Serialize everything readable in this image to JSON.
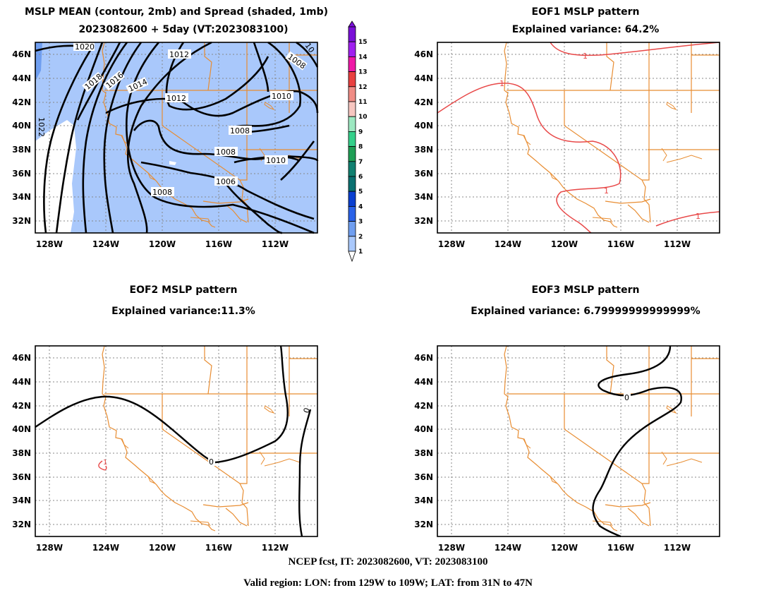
{
  "titles": {
    "panel1_line1": "MSLP MEAN (contour, 2mb) and Spread (shaded, 1mb)",
    "panel1_line2": "2023082600 + 5day (VT:2023083100)",
    "panel2_line1": "EOF1 MSLP pattern",
    "panel2_line2": "Explained variance: 64.2%",
    "panel3_line1": "EOF2 MSLP pattern",
    "panel3_line2": "Explained variance:11.3%",
    "panel4_line1": "EOF3 MSLP pattern",
    "panel4_line2": "Explained variance: 6.79999999999999%"
  },
  "footer": {
    "line1": "NCEP fcst, IT: 2023082600, VT: 2023083100",
    "line2": "Valid region: LON: from 129W to 109W; LAT: from 31N to 47N"
  },
  "colorbar": {
    "levels": [
      "1",
      "2",
      "3",
      "4",
      "5",
      "6",
      "7",
      "8",
      "9",
      "10",
      "11",
      "12",
      "13",
      "14",
      "15"
    ],
    "colors": [
      "#ffffff",
      "#a9c8fb",
      "#6f9ef0",
      "#2a62e8",
      "#0a3fd0",
      "#0a7070",
      "#108070",
      "#1f9e55",
      "#34d08a",
      "#9de8c1",
      "#f7c6c0",
      "#f08c85",
      "#e94040",
      "#ef18a7",
      "#a020f0",
      "#7a10d8"
    ]
  },
  "chart_data": [
    {
      "type": "contour",
      "title": "MSLP MEAN (contour, 2mb) and Spread (shaded, 1mb)",
      "subtitle": "2023082600 + 5day (VT:2023083100)",
      "contour_interval_mb": 2,
      "shading_interval_mb": 1,
      "contour_labels": [
        "1020",
        "1018",
        "1016",
        "1014",
        "1012",
        "1012",
        "1010",
        "1010",
        "1008",
        "1008",
        "1008",
        "1008",
        "1006",
        "1022"
      ],
      "x_ticks": [
        "128W",
        "124W",
        "120W",
        "116W",
        "112W"
      ],
      "y_ticks": [
        "46N",
        "44N",
        "42N",
        "40N",
        "38N",
        "36N",
        "34N",
        "32N"
      ],
      "xlim": [
        -129,
        -109
      ],
      "ylim": [
        31,
        47
      ],
      "grid": true
    },
    {
      "type": "contour",
      "title": "EOF1 MSLP pattern",
      "subtitle": "Explained variance: 64.2%",
      "explained_variance_pct": 64.2,
      "contour_labels": [
        "1",
        "1",
        "1",
        "1"
      ],
      "x_ticks": [
        "128W",
        "124W",
        "120W",
        "116W",
        "112W"
      ],
      "y_ticks": [
        "46N",
        "44N",
        "42N",
        "40N",
        "38N",
        "36N",
        "34N",
        "32N"
      ],
      "xlim": [
        -129,
        -109
      ],
      "ylim": [
        31,
        47
      ],
      "grid": true
    },
    {
      "type": "contour",
      "title": "EOF2 MSLP pattern",
      "subtitle": "Explained variance:11.3%",
      "explained_variance_pct": 11.3,
      "contour_labels": [
        "0",
        "0",
        "1"
      ],
      "x_ticks": [
        "128W",
        "124W",
        "120W",
        "116W",
        "112W"
      ],
      "y_ticks": [
        "46N",
        "44N",
        "42N",
        "40N",
        "38N",
        "36N",
        "34N",
        "32N"
      ],
      "xlim": [
        -129,
        -109
      ],
      "ylim": [
        31,
        47
      ],
      "grid": true
    },
    {
      "type": "contour",
      "title": "EOF3 MSLP pattern",
      "subtitle": "Explained variance: 6.79999999999999%",
      "explained_variance_pct": 6.8,
      "contour_labels": [
        "0"
      ],
      "x_ticks": [
        "128W",
        "124W",
        "120W",
        "116W",
        "112W"
      ],
      "y_ticks": [
        "46N",
        "44N",
        "42N",
        "40N",
        "38N",
        "36N",
        "34N",
        "32N"
      ],
      "xlim": [
        -129,
        -109
      ],
      "ylim": [
        31,
        47
      ],
      "grid": true
    }
  ]
}
